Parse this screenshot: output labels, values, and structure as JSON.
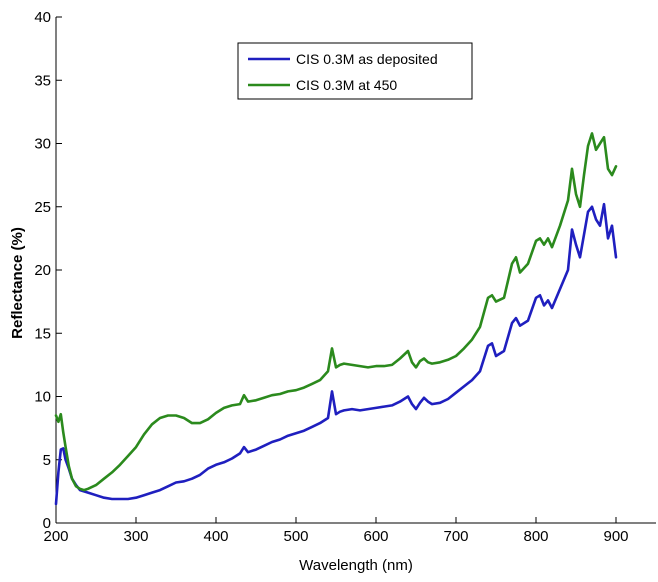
{
  "chart_data": {
    "type": "line",
    "title": "",
    "xlabel": "Wavelength (nm)",
    "ylabel": "Reflectance (%)",
    "xlim": [
      200,
      950
    ],
    "ylim": [
      0,
      40
    ],
    "x_ticks": [
      200,
      300,
      400,
      500,
      600,
      700,
      800,
      900
    ],
    "y_ticks": [
      0,
      5,
      10,
      15,
      20,
      25,
      30,
      35,
      40
    ],
    "grid": false,
    "legend_position": "top-center",
    "series": [
      {
        "name": "CIS 0.3M as deposited",
        "color": "#1f1fbf",
        "x": [
          200,
          203,
          206,
          209,
          212,
          216,
          220,
          225,
          230,
          235,
          240,
          250,
          260,
          270,
          280,
          290,
          300,
          310,
          320,
          330,
          340,
          350,
          360,
          370,
          380,
          390,
          400,
          410,
          420,
          430,
          435,
          440,
          450,
          460,
          470,
          480,
          490,
          500,
          510,
          520,
          530,
          540,
          545,
          550,
          555,
          560,
          570,
          580,
          590,
          600,
          610,
          620,
          630,
          640,
          645,
          650,
          655,
          660,
          665,
          670,
          680,
          690,
          700,
          710,
          720,
          730,
          740,
          745,
          750,
          760,
          770,
          775,
          780,
          790,
          800,
          805,
          810,
          815,
          820,
          830,
          840,
          845,
          850,
          855,
          860,
          865,
          870,
          875,
          880,
          885,
          890,
          895,
          900
        ],
        "values": [
          1.5,
          4.0,
          5.8,
          5.9,
          5.0,
          4.3,
          3.5,
          3.0,
          2.6,
          2.5,
          2.4,
          2.2,
          2.0,
          1.9,
          1.9,
          1.9,
          2.0,
          2.2,
          2.4,
          2.6,
          2.9,
          3.2,
          3.3,
          3.5,
          3.8,
          4.3,
          4.6,
          4.8,
          5.1,
          5.5,
          6.0,
          5.6,
          5.8,
          6.1,
          6.4,
          6.6,
          6.9,
          7.1,
          7.3,
          7.6,
          7.9,
          8.3,
          10.4,
          8.6,
          8.8,
          8.9,
          9.0,
          8.9,
          9.0,
          9.1,
          9.2,
          9.3,
          9.6,
          10.0,
          9.4,
          9.0,
          9.5,
          9.9,
          9.6,
          9.4,
          9.5,
          9.8,
          10.3,
          10.8,
          11.3,
          12.0,
          14.0,
          14.2,
          13.2,
          13.6,
          15.8,
          16.2,
          15.6,
          16.0,
          17.8,
          18.0,
          17.2,
          17.6,
          17.0,
          18.5,
          20.0,
          23.2,
          22.0,
          21.0,
          22.8,
          24.6,
          25.0,
          24.0,
          23.5,
          25.2,
          22.5,
          23.5,
          21.0
        ]
      },
      {
        "name": "CIS 0.3M at 450",
        "color": "#2b8a1d",
        "x": [
          200,
          203,
          206,
          209,
          212,
          216,
          220,
          225,
          230,
          235,
          240,
          250,
          260,
          270,
          280,
          290,
          300,
          310,
          320,
          330,
          340,
          350,
          360,
          370,
          380,
          390,
          400,
          410,
          420,
          430,
          435,
          440,
          450,
          460,
          470,
          480,
          490,
          500,
          510,
          520,
          530,
          540,
          545,
          550,
          555,
          560,
          570,
          580,
          590,
          600,
          610,
          620,
          630,
          640,
          645,
          650,
          655,
          660,
          665,
          670,
          680,
          690,
          700,
          710,
          720,
          730,
          740,
          745,
          750,
          760,
          770,
          775,
          780,
          790,
          800,
          805,
          810,
          815,
          820,
          830,
          840,
          845,
          850,
          855,
          860,
          865,
          870,
          875,
          880,
          885,
          890,
          895,
          900
        ],
        "values": [
          8.5,
          8.0,
          8.6,
          7.2,
          6.0,
          4.5,
          3.5,
          2.9,
          2.7,
          2.6,
          2.7,
          3.0,
          3.5,
          4.0,
          4.6,
          5.3,
          6.0,
          7.0,
          7.8,
          8.3,
          8.5,
          8.5,
          8.3,
          7.9,
          7.9,
          8.2,
          8.7,
          9.1,
          9.3,
          9.4,
          10.1,
          9.6,
          9.7,
          9.9,
          10.1,
          10.2,
          10.4,
          10.5,
          10.7,
          11.0,
          11.3,
          12.0,
          13.8,
          12.3,
          12.5,
          12.6,
          12.5,
          12.4,
          12.3,
          12.4,
          12.4,
          12.5,
          13.0,
          13.6,
          12.7,
          12.3,
          12.8,
          13.0,
          12.7,
          12.6,
          12.7,
          12.9,
          13.2,
          13.8,
          14.5,
          15.5,
          17.8,
          18.0,
          17.5,
          17.8,
          20.5,
          21.0,
          19.8,
          20.5,
          22.3,
          22.5,
          22.0,
          22.5,
          21.8,
          23.5,
          25.5,
          28.0,
          26.0,
          25.0,
          27.5,
          29.8,
          30.8,
          29.5,
          30.0,
          30.5,
          28.0,
          27.5,
          28.2
        ]
      }
    ]
  }
}
